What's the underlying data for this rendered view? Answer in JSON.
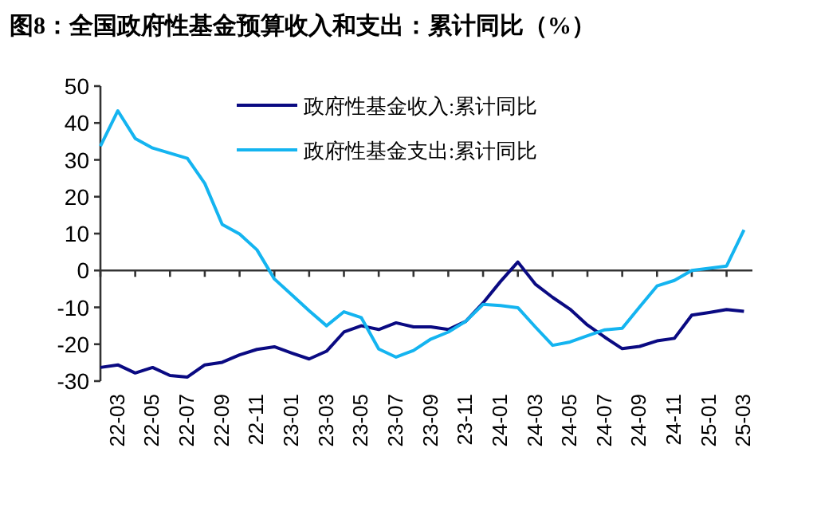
{
  "chart_data": {
    "type": "line",
    "title": "图8：全国政府性基金预算收入和支出：累计同比（%）",
    "categories": [
      null,
      "22-03",
      null,
      "22-05",
      null,
      "22-07",
      null,
      "22-09",
      null,
      "22-11",
      null,
      "23-01",
      null,
      "23-03",
      null,
      "23-05",
      null,
      "23-07",
      null,
      "23-09",
      null,
      "23-11",
      null,
      "24-01",
      null,
      "24-03",
      null,
      "24-05",
      null,
      "24-07",
      null,
      "24-09",
      null,
      "24-11",
      null,
      "25-01",
      null,
      "25-03"
    ],
    "series": [
      {
        "name": "政府性基金收入:累计同比",
        "color": "#0a0a82",
        "values": [
          -26.3,
          -25.6,
          -27.8,
          -26.3,
          -28.5,
          -28.9,
          -25.6,
          -24.9,
          -22.9,
          -21.4,
          -20.7,
          -22.4,
          -24.0,
          -21.9,
          -16.7,
          -15.0,
          -16.0,
          -14.2,
          -15.3,
          -15.3,
          -16.0,
          -13.8,
          -8.8,
          -3.0,
          2.3,
          -3.7,
          -7.3,
          -10.5,
          -14.8,
          -18.1,
          -21.2,
          -20.6,
          -19.1,
          -18.4,
          -12.1,
          -11.4,
          -10.6,
          -11.1
        ]
      },
      {
        "name": "政府性基金支出:累计同比",
        "color": "#14b4f0",
        "values": [
          33.7,
          43.3,
          35.8,
          33.2,
          31.8,
          30.4,
          23.6,
          12.5,
          9.9,
          5.6,
          -2.3,
          -6.6,
          -10.9,
          -15.0,
          -11.2,
          -12.8,
          -21.3,
          -23.5,
          -21.7,
          -18.6,
          -16.7,
          -13.8,
          -9.2,
          -9.5,
          -10.1,
          -15.3,
          -20.3,
          -19.4,
          -17.7,
          -16.1,
          -15.7,
          -9.9,
          -4.2,
          -2.7,
          0,
          0.6,
          1.2,
          11
        ]
      }
    ],
    "ylim": [
      -30,
      50
    ],
    "yticks": [
      -30,
      -20,
      -10,
      0,
      10,
      20,
      30,
      40,
      50
    ],
    "legend": "top"
  }
}
